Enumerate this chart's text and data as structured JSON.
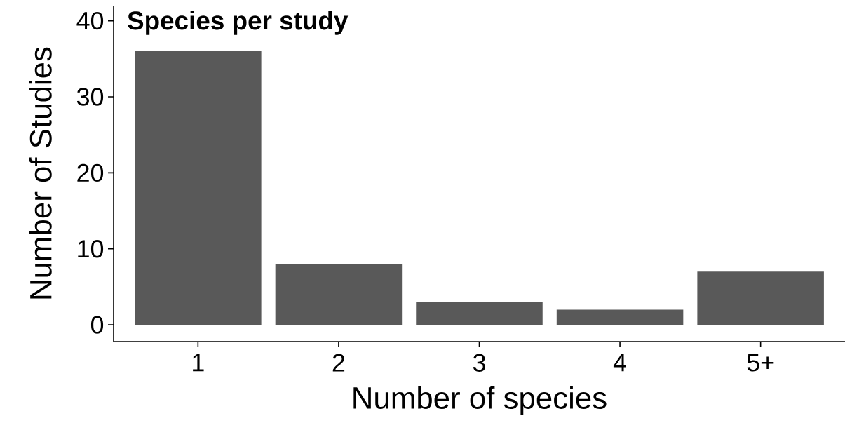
{
  "chart_data": {
    "type": "bar",
    "title": "Species per study",
    "xlabel": "Number of species",
    "ylabel": "Number of Studies",
    "categories": [
      "1",
      "2",
      "3",
      "4",
      "5+"
    ],
    "values": [
      36,
      8,
      3,
      2,
      7
    ],
    "color": "#595959",
    "ylim": [
      -2.2,
      42
    ],
    "yticks": [
      0,
      10,
      20,
      30,
      40
    ],
    "grid": false
  }
}
